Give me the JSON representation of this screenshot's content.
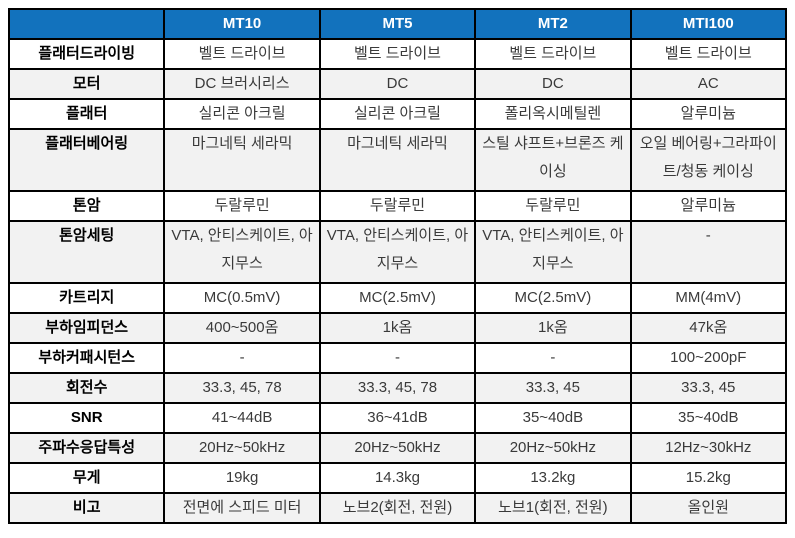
{
  "table": {
    "colors": {
      "header_bg": "#1272bd",
      "header_text": "#ffffff",
      "stripe_bg": "#f2f2f2",
      "row_bg": "#ffffff",
      "border": "#000000",
      "label_text": "#000000",
      "value_text": "#3a3a3a"
    },
    "header": {
      "corner": "",
      "columns": [
        "MT10",
        "MT5",
        "MT2",
        "MTI100"
      ]
    },
    "rows": [
      {
        "label": "플래터드라이빙",
        "values": [
          "벨트 드라이브",
          "벨트 드라이브",
          "벨트 드라이브",
          "벨트 드라이브"
        ]
      },
      {
        "label": "모터",
        "values": [
          "DC 브러시리스",
          "DC",
          "DC",
          "AC"
        ]
      },
      {
        "label": "플래터",
        "values": [
          "실리콘 아크릴",
          "실리콘 아크릴",
          "폴리옥시메틸렌",
          "알루미늄"
        ]
      },
      {
        "label": "플래터베어링",
        "values": [
          "마그네틱 세라믹",
          "마그네틱 세라믹",
          "스틸 샤프트+브론즈 케이싱",
          "오일 베어링+그라파이트/청동 케이싱"
        ]
      },
      {
        "label": "톤암",
        "values": [
          "두랄루민",
          "두랄루민",
          "두랄루민",
          "알루미늄"
        ]
      },
      {
        "label": "톤암세팅",
        "values": [
          "VTA, 안티스케이트, 아지무스",
          "VTA, 안티스케이트, 아지무스",
          "VTA, 안티스케이트, 아지무스",
          "-"
        ]
      },
      {
        "label": "카트리지",
        "values": [
          "MC(0.5mV)",
          "MC(2.5mV)",
          "MC(2.5mV)",
          "MM(4mV)"
        ]
      },
      {
        "label": "부하임피던스",
        "values": [
          "400~500옴",
          "1k옴",
          "1k옴",
          "47k옴"
        ]
      },
      {
        "label": "부하커패시턴스",
        "values": [
          "-",
          "-",
          "-",
          "100~200pF"
        ]
      },
      {
        "label": "회전수",
        "values": [
          "33.3, 45, 78",
          "33.3, 45, 78",
          "33.3, 45",
          "33.3, 45"
        ]
      },
      {
        "label": "SNR",
        "values": [
          "41~44dB",
          "36~41dB",
          "35~40dB",
          "35~40dB"
        ]
      },
      {
        "label": "주파수응답특성",
        "values": [
          "20Hz~50kHz",
          "20Hz~50kHz",
          "20Hz~50kHz",
          "12Hz~30kHz"
        ]
      },
      {
        "label": "무게",
        "values": [
          "19kg",
          "14.3kg",
          "13.2kg",
          "15.2kg"
        ]
      },
      {
        "label": "비고",
        "values": [
          "전면에 스피드 미터",
          "노브2(회전, 전원)",
          "노브1(회전, 전원)",
          "올인원"
        ]
      }
    ]
  }
}
